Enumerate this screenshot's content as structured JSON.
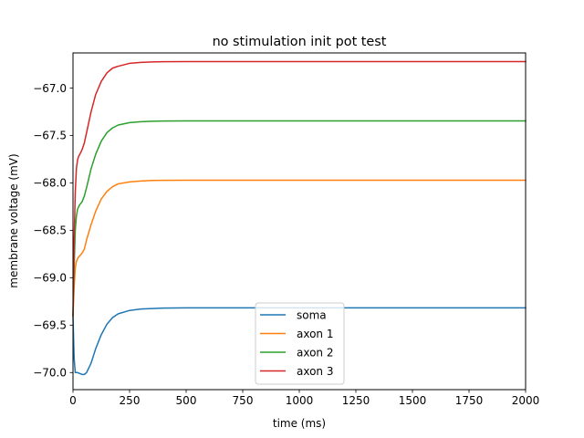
{
  "chart_data": {
    "type": "line",
    "title": "no stimulation init pot test",
    "xlabel": "time (ms)",
    "ylabel": "membrane voltage (mV)",
    "xlim": [
      0,
      2000
    ],
    "ylim": [
      -70.18,
      -66.63
    ],
    "xticks": [
      0,
      250,
      500,
      750,
      1000,
      1250,
      1500,
      1750,
      2000
    ],
    "yticks": [
      -70.0,
      -69.5,
      -69.0,
      -68.5,
      -68.0,
      -67.5,
      -67.0
    ],
    "xtick_labels": [
      "0",
      "250",
      "500",
      "750",
      "1000",
      "1250",
      "1500",
      "1750",
      "2000"
    ],
    "ytick_labels": [
      "−70.0",
      "−69.5",
      "−69.0",
      "−68.5",
      "−68.0",
      "−67.5",
      "−67.0"
    ],
    "grid": false,
    "legend_position": "lower-center",
    "series": [
      {
        "name": "soma",
        "color": "#1f77b4",
        "x": [
          0,
          5,
          10,
          20,
          30,
          40,
          50,
          60,
          80,
          100,
          125,
          150,
          175,
          200,
          250,
          300,
          350,
          400,
          500,
          750,
          1000,
          1500,
          2000
        ],
        "y": [
          -69.4,
          -69.85,
          -70.0,
          -70.0,
          -70.01,
          -70.02,
          -70.02,
          -70.0,
          -69.9,
          -69.75,
          -69.6,
          -69.49,
          -69.42,
          -69.38,
          -69.345,
          -69.33,
          -69.325,
          -69.32,
          -69.318,
          -69.318,
          -69.318,
          -69.318,
          -69.318
        ]
      },
      {
        "name": "axon 1",
        "color": "#ff7f0e",
        "x": [
          0,
          5,
          10,
          15,
          20,
          25,
          30,
          40,
          50,
          60,
          80,
          100,
          125,
          150,
          175,
          200,
          250,
          300,
          350,
          400,
          500,
          750,
          1000,
          1500,
          2000
        ],
        "y": [
          -69.4,
          -69.1,
          -68.9,
          -68.83,
          -68.8,
          -68.78,
          -68.77,
          -68.74,
          -68.7,
          -68.6,
          -68.44,
          -68.3,
          -68.17,
          -68.09,
          -68.04,
          -68.01,
          -67.99,
          -67.98,
          -67.975,
          -67.973,
          -67.972,
          -67.972,
          -67.972,
          -67.972,
          -67.972
        ]
      },
      {
        "name": "axon 2",
        "color": "#2ca02c",
        "x": [
          0,
          5,
          10,
          15,
          20,
          25,
          30,
          40,
          50,
          60,
          80,
          100,
          125,
          150,
          175,
          200,
          250,
          300,
          350,
          400,
          500,
          750,
          1000,
          1500,
          2000
        ],
        "y": [
          -69.4,
          -68.9,
          -68.5,
          -68.35,
          -68.28,
          -68.25,
          -68.23,
          -68.2,
          -68.14,
          -68.05,
          -67.85,
          -67.7,
          -67.56,
          -67.47,
          -67.42,
          -67.39,
          -67.365,
          -67.355,
          -67.35,
          -67.348,
          -67.347,
          -67.347,
          -67.347,
          -67.347,
          -67.347
        ]
      },
      {
        "name": "axon 3",
        "color": "#d62728",
        "x": [
          0,
          5,
          10,
          15,
          20,
          25,
          30,
          40,
          50,
          60,
          80,
          100,
          125,
          150,
          175,
          200,
          250,
          300,
          350,
          400,
          500,
          750,
          1000,
          1500,
          2000
        ],
        "y": [
          -69.4,
          -68.6,
          -68.1,
          -67.85,
          -67.76,
          -67.72,
          -67.7,
          -67.65,
          -67.58,
          -67.47,
          -67.25,
          -67.07,
          -66.93,
          -66.84,
          -66.79,
          -66.77,
          -66.74,
          -66.73,
          -66.725,
          -66.723,
          -66.722,
          -66.722,
          -66.722,
          -66.722,
          -66.722
        ]
      }
    ]
  }
}
